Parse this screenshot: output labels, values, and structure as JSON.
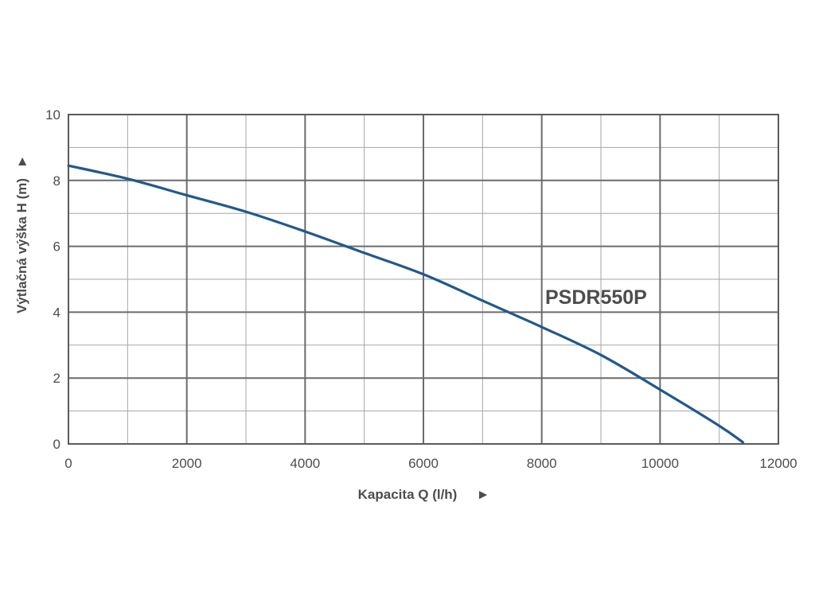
{
  "chart_data": {
    "type": "line",
    "xlabel": "Kapacita Q (l/h)",
    "ylabel": "Výtlačná výška H (m)",
    "xlim": [
      0,
      12000
    ],
    "ylim": [
      0,
      10
    ],
    "x_ticks": [
      "0",
      "2000",
      "4000",
      "6000",
      "8000",
      "10000",
      "12000"
    ],
    "y_ticks": [
      "0",
      "2",
      "4",
      "6",
      "8",
      "10"
    ],
    "grid": true,
    "series": [
      {
        "name": "PSDR550P",
        "color": "#1d5a94",
        "x": [
          0,
          1000,
          2000,
          3000,
          4000,
          5000,
          6000,
          7000,
          7500,
          8000,
          9000,
          10000,
          11000,
          11400
        ],
        "y": [
          8.45,
          8.05,
          7.55,
          7.05,
          6.45,
          5.8,
          5.15,
          4.35,
          3.95,
          3.55,
          2.7,
          1.65,
          0.55,
          0.05
        ]
      }
    ],
    "axis_arrow_glyph": "►"
  }
}
